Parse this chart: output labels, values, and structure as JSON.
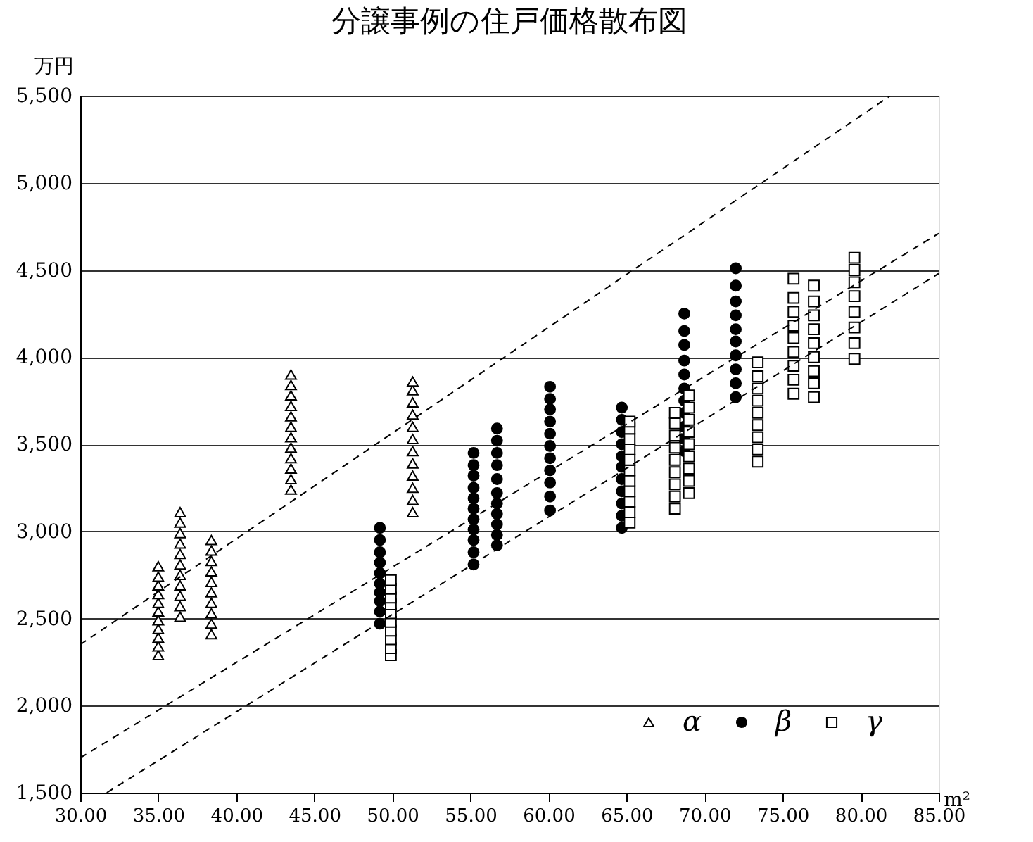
{
  "chart_data": {
    "type": "scatter",
    "title": "分譲事例の住戸価格散布図",
    "xlabel": "m²",
    "ylabel": "万円",
    "xlim": [
      30,
      85
    ],
    "ylim": [
      1500,
      5500
    ],
    "xticks": [
      {
        "value": 30,
        "label": "30.00"
      },
      {
        "value": 35,
        "label": "35.00"
      },
      {
        "value": 40,
        "label": "40.00"
      },
      {
        "value": 45,
        "label": "45.00"
      },
      {
        "value": 50,
        "label": "50.00"
      },
      {
        "value": 55,
        "label": "55.00"
      },
      {
        "value": 60,
        "label": "60.00"
      },
      {
        "value": 65,
        "label": "65.00"
      },
      {
        "value": 70,
        "label": "70.00"
      },
      {
        "value": 75,
        "label": "75.00"
      },
      {
        "value": 80,
        "label": "80.00"
      },
      {
        "value": 85,
        "label": "85.00"
      }
    ],
    "yticks": [
      {
        "value": 1500,
        "label": "1,500"
      },
      {
        "value": 2000,
        "label": "2,000"
      },
      {
        "value": 2500,
        "label": "2,500"
      },
      {
        "value": 3000,
        "label": "3,000"
      },
      {
        "value": 3500,
        "label": "3,500"
      },
      {
        "value": 4000,
        "label": "4,000"
      },
      {
        "value": 4500,
        "label": "4,500"
      },
      {
        "value": 5000,
        "label": "5,000"
      },
      {
        "value": 5500,
        "label": "5,500"
      }
    ],
    "grid": "y",
    "legend": "bottom right",
    "series": [
      {
        "name": "α",
        "marker": "triangle",
        "color": "#ffffff",
        "x": [
          35.0,
          35.0,
          35.0,
          35.0,
          35.0,
          35.0,
          35.0,
          35.0,
          35.0,
          35.0,
          35.0,
          36.4,
          36.4,
          36.4,
          36.4,
          36.4,
          36.4,
          36.4,
          36.4,
          36.4,
          36.4,
          36.4,
          38.4,
          38.4,
          38.4,
          38.4,
          38.4,
          38.4,
          38.4,
          38.4,
          38.4,
          38.4,
          43.5,
          43.5,
          43.5,
          43.5,
          43.5,
          43.5,
          43.5,
          43.5,
          43.5,
          43.5,
          43.5,
          43.5,
          51.3,
          51.3,
          51.3,
          51.3,
          51.3,
          51.3,
          51.3,
          51.3,
          51.3,
          51.3,
          51.3,
          51.3
        ],
        "values": [
          2290,
          2340,
          2390,
          2440,
          2490,
          2540,
          2590,
          2640,
          2690,
          2740,
          2800,
          2510,
          2570,
          2630,
          2690,
          2750,
          2810,
          2870,
          2930,
          2990,
          3050,
          3110,
          2410,
          2470,
          2530,
          2590,
          2650,
          2710,
          2770,
          2830,
          2890,
          2950,
          3240,
          3300,
          3360,
          3420,
          3480,
          3540,
          3600,
          3660,
          3720,
          3780,
          3840,
          3900,
          3110,
          3180,
          3250,
          3320,
          3390,
          3460,
          3530,
          3600,
          3670,
          3740,
          3810,
          3860
        ]
      },
      {
        "name": "β",
        "marker": "circle",
        "color": "#000000",
        "x": [
          49.2,
          49.2,
          49.2,
          49.2,
          49.2,
          49.2,
          49.2,
          49.2,
          49.2,
          49.2,
          55.2,
          55.2,
          55.2,
          55.2,
          55.2,
          55.2,
          55.2,
          55.2,
          55.2,
          55.2,
          55.2,
          56.7,
          56.7,
          56.7,
          56.7,
          56.7,
          56.7,
          56.7,
          56.7,
          56.7,
          56.7,
          56.7,
          60.1,
          60.1,
          60.1,
          60.1,
          60.1,
          60.1,
          60.1,
          60.1,
          60.1,
          60.1,
          60.1,
          64.7,
          64.7,
          64.7,
          64.7,
          64.7,
          64.7,
          64.7,
          64.7,
          64.7,
          64.7,
          64.7,
          68.7,
          68.7,
          68.7,
          68.7,
          68.7,
          68.7,
          68.7,
          68.7,
          68.7,
          68.7,
          68.7,
          72.0,
          72.0,
          72.0,
          72.0,
          72.0,
          72.0,
          72.0,
          72.0,
          72.0,
          72.0
        ],
        "values": [
          2470,
          2540,
          2600,
          2650,
          2700,
          2760,
          2820,
          2880,
          2950,
          3020,
          2810,
          2880,
          2950,
          3010,
          3070,
          3130,
          3190,
          3250,
          3320,
          3380,
          3450,
          2920,
          2980,
          3040,
          3100,
          3160,
          3220,
          3300,
          3380,
          3450,
          3520,
          3590,
          3120,
          3200,
          3280,
          3350,
          3420,
          3490,
          3560,
          3630,
          3700,
          3760,
          3830,
          3020,
          3090,
          3160,
          3230,
          3300,
          3370,
          3430,
          3500,
          3570,
          3640,
          3710,
          3460,
          3530,
          3600,
          3680,
          3750,
          3820,
          3900,
          3980,
          4070,
          4150,
          4250,
          3770,
          3850,
          3930,
          4010,
          4090,
          4160,
          4240,
          4320,
          4410,
          4510
        ]
      },
      {
        "name": "γ",
        "marker": "square",
        "color": "#ffffff",
        "x": [
          49.9,
          49.9,
          49.9,
          49.9,
          49.9,
          49.9,
          49.9,
          49.9,
          49.9,
          49.9,
          65.2,
          65.2,
          65.2,
          65.2,
          65.2,
          65.2,
          65.2,
          65.2,
          65.2,
          65.2,
          65.2,
          68.1,
          68.1,
          68.1,
          68.1,
          68.1,
          68.1,
          68.1,
          68.1,
          68.1,
          69.0,
          69.0,
          69.0,
          69.0,
          69.0,
          69.0,
          69.0,
          69.0,
          69.0,
          73.4,
          73.4,
          73.4,
          73.4,
          73.4,
          73.4,
          73.4,
          73.4,
          73.4,
          75.7,
          75.7,
          75.7,
          75.7,
          75.7,
          75.7,
          75.7,
          75.7,
          75.7,
          77.0,
          77.0,
          77.0,
          77.0,
          77.0,
          77.0,
          77.0,
          77.0,
          77.0,
          79.6,
          79.6,
          79.6,
          79.6,
          79.6,
          79.6,
          79.6,
          79.6
        ],
        "values": [
          2290,
          2330,
          2380,
          2430,
          2480,
          2530,
          2580,
          2620,
          2670,
          2720,
          3050,
          3110,
          3170,
          3230,
          3290,
          3350,
          3410,
          3470,
          3530,
          3590,
          3630,
          3130,
          3200,
          3270,
          3340,
          3410,
          3480,
          3550,
          3620,
          3680,
          3220,
          3290,
          3360,
          3430,
          3500,
          3570,
          3640,
          3710,
          3780,
          3400,
          3470,
          3540,
          3610,
          3680,
          3750,
          3820,
          3890,
          3970,
          3790,
          3870,
          3950,
          4030,
          4110,
          4180,
          4260,
          4340,
          4450,
          3770,
          3850,
          3920,
          4000,
          4080,
          4160,
          4240,
          4320,
          4410,
          3990,
          4080,
          4170,
          4260,
          4350,
          4430,
          4500,
          4570
        ]
      },
      {
        "type": "line",
        "line_style": "dashed",
        "color": "#000000",
        "x": [
          30,
          81.9
        ],
        "values": [
          2350,
          5500
        ]
      },
      {
        "type": "line",
        "line_style": "dashed",
        "color": "#000000",
        "x": [
          30,
          85
        ],
        "values": [
          1700,
          4710
        ]
      },
      {
        "type": "line",
        "line_style": "dashed",
        "color": "#000000",
        "x": [
          31.7,
          85
        ],
        "values": [
          1500,
          4480
        ]
      }
    ]
  }
}
